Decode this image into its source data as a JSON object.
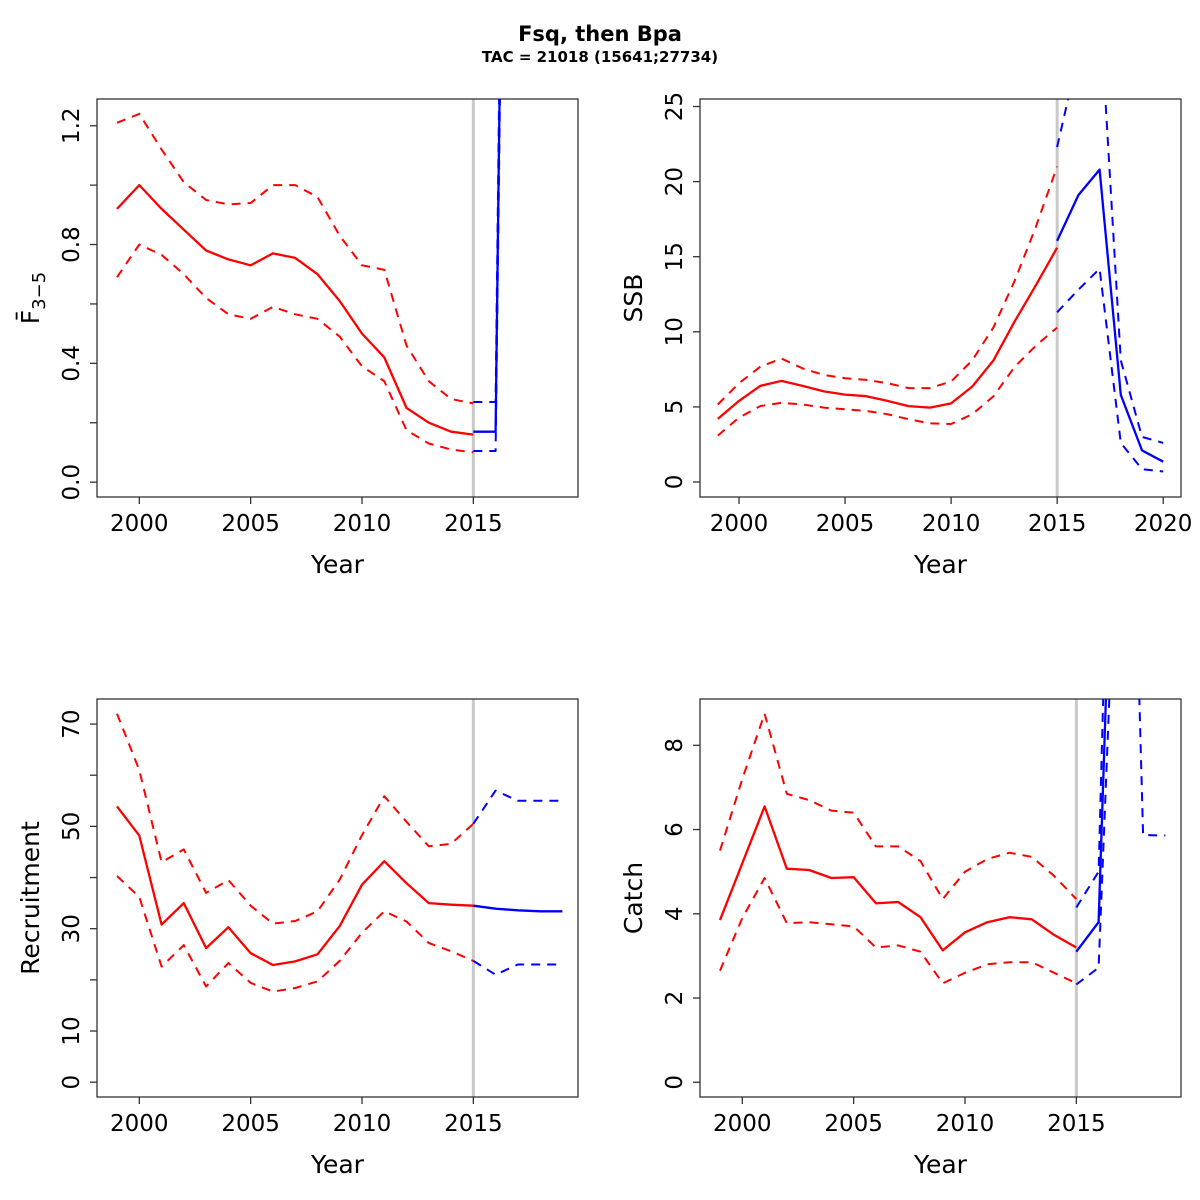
{
  "title": "Fsq, then Bpa",
  "subtitle": "TAC = 21018 (15641;27734)",
  "colors": {
    "historical": "#FF0000",
    "forecast": "#0000FF",
    "divider": "#C9C9C9",
    "axis": "#333333",
    "background": "#FFFFFF"
  },
  "divider_year": 2015,
  "chart_data": [
    {
      "name": "fbar",
      "type": "line",
      "ylabel": "F̄",
      "ylabel_sub": "3−5",
      "xlabel": "Year",
      "xlim": [
        1998.1,
        2019.7
      ],
      "ylim": [
        -0.05,
        1.29
      ],
      "legend": "none",
      "grid": false,
      "xticks": [
        {
          "v": 2000,
          "label": "2000"
        },
        {
          "v": 2005,
          "label": "2005"
        },
        {
          "v": 2010,
          "label": "2010"
        },
        {
          "v": 2015,
          "label": "2015"
        }
      ],
      "yticks": [
        {
          "v": 0,
          "label": "0.0"
        },
        {
          "v": 0.2,
          "label": ""
        },
        {
          "v": 0.4,
          "label": "0.4"
        },
        {
          "v": 0.6,
          "label": ""
        },
        {
          "v": 0.8,
          "label": "0.8"
        },
        {
          "v": 1.0,
          "label": ""
        },
        {
          "v": 1.2,
          "label": "1.2"
        }
      ],
      "series": [
        {
          "name": "historical-upper",
          "period": "historical",
          "dash": true,
          "x": [
            1999,
            2000,
            2001,
            2002,
            2003,
            2004,
            2005,
            2006,
            2007,
            2008,
            2009,
            2010,
            2011,
            2012,
            2013,
            2014,
            2015
          ],
          "y": [
            1.21,
            1.24,
            1.12,
            1.01,
            0.95,
            0.935,
            0.94,
            1.0,
            1.0,
            0.96,
            0.83,
            0.73,
            0.715,
            0.46,
            0.34,
            0.28,
            0.265
          ]
        },
        {
          "name": "historical-median",
          "period": "historical",
          "dash": false,
          "x": [
            1999,
            2000,
            2001,
            2002,
            2003,
            2004,
            2005,
            2006,
            2007,
            2008,
            2009,
            2010,
            2011,
            2012,
            2013,
            2014,
            2015
          ],
          "y": [
            0.92,
            1.0,
            0.92,
            0.85,
            0.78,
            0.75,
            0.73,
            0.77,
            0.755,
            0.7,
            0.61,
            0.5,
            0.42,
            0.25,
            0.2,
            0.17,
            0.16
          ]
        },
        {
          "name": "historical-lower",
          "period": "historical",
          "dash": true,
          "x": [
            1999,
            2000,
            2001,
            2002,
            2003,
            2004,
            2005,
            2006,
            2007,
            2008,
            2009,
            2010,
            2011,
            2012,
            2013,
            2014,
            2015
          ],
          "y": [
            0.69,
            0.8,
            0.765,
            0.7,
            0.62,
            0.565,
            0.55,
            0.59,
            0.565,
            0.55,
            0.49,
            0.39,
            0.34,
            0.175,
            0.13,
            0.11,
            0.1
          ]
        },
        {
          "name": "forecast-upper",
          "period": "forecast",
          "dash": true,
          "x": [
            2015,
            2016,
            2017
          ],
          "y": [
            0.27,
            0.27,
            6.8
          ]
        },
        {
          "name": "forecast-median",
          "period": "forecast",
          "dash": false,
          "x": [
            2015,
            2016,
            2017
          ],
          "y": [
            0.17,
            0.17,
            6.5
          ]
        },
        {
          "name": "forecast-lower",
          "period": "forecast",
          "dash": true,
          "x": [
            2015,
            2016,
            2017
          ],
          "y": [
            0.105,
            0.105,
            6.2
          ]
        }
      ]
    },
    {
      "name": "ssb",
      "type": "line",
      "ylabel": "SSB",
      "ylabel_sub": "",
      "xlabel": "Year",
      "xlim": [
        1998.16,
        2020.84
      ],
      "ylim": [
        -1.0,
        25.5
      ],
      "legend": "none",
      "grid": false,
      "xticks": [
        {
          "v": 2000,
          "label": "2000"
        },
        {
          "v": 2005,
          "label": "2005"
        },
        {
          "v": 2010,
          "label": "2010"
        },
        {
          "v": 2015,
          "label": "2015"
        },
        {
          "v": 2020,
          "label": "2020"
        }
      ],
      "yticks": [
        {
          "v": 0,
          "label": "0"
        },
        {
          "v": 5,
          "label": "5"
        },
        {
          "v": 10,
          "label": "10"
        },
        {
          "v": 15,
          "label": "15"
        },
        {
          "v": 20,
          "label": "20"
        },
        {
          "v": 25,
          "label": "25"
        }
      ],
      "series": [
        {
          "name": "historical-upper",
          "period": "historical",
          "dash": true,
          "x": [
            1999,
            2000,
            2001,
            2002,
            2003,
            2004,
            2005,
            2006,
            2007,
            2008,
            2009,
            2010,
            2011,
            2012,
            2013,
            2014,
            2015
          ],
          "y": [
            5.16,
            6.58,
            7.67,
            8.22,
            7.56,
            7.12,
            6.91,
            6.8,
            6.58,
            6.25,
            6.25,
            6.69,
            8.1,
            10.3,
            13.4,
            17.0,
            21.0
          ]
        },
        {
          "name": "historical-median",
          "period": "historical",
          "dash": false,
          "x": [
            1999,
            2000,
            2001,
            2002,
            2003,
            2004,
            2005,
            2006,
            2007,
            2008,
            2009,
            2010,
            2011,
            2012,
            2013,
            2014,
            2015
          ],
          "y": [
            4.2,
            5.4,
            6.4,
            6.73,
            6.4,
            6.03,
            5.82,
            5.71,
            5.4,
            5.05,
            4.95,
            5.23,
            6.36,
            8.1,
            10.7,
            13.1,
            15.6
          ]
        },
        {
          "name": "historical-lower",
          "period": "historical",
          "dash": true,
          "x": [
            1999,
            2000,
            2001,
            2002,
            2003,
            2004,
            2005,
            2006,
            2007,
            2008,
            2009,
            2010,
            2011,
            2012,
            2013,
            2014,
            2015
          ],
          "y": [
            3.09,
            4.29,
            5.05,
            5.27,
            5.16,
            4.95,
            4.84,
            4.73,
            4.51,
            4.18,
            3.9,
            3.86,
            4.51,
            5.71,
            7.67,
            9.08,
            10.28
          ]
        },
        {
          "name": "forecast-upper",
          "period": "forecast",
          "dash": true,
          "x": [
            2015,
            2016,
            2017,
            2018,
            2019,
            2020
          ],
          "y": [
            22.3,
            28.5,
            32.0,
            8.1,
            3.0,
            2.6
          ]
        },
        {
          "name": "forecast-median",
          "period": "forecast",
          "dash": false,
          "x": [
            2015,
            2016,
            2017,
            2018,
            2019,
            2020
          ],
          "y": [
            16.05,
            19.1,
            20.8,
            5.8,
            2.1,
            1.35
          ]
        },
        {
          "name": "forecast-lower",
          "period": "forecast",
          "dash": true,
          "x": [
            2015,
            2016,
            2017,
            2018,
            2019,
            2020
          ],
          "y": [
            11.3,
            12.8,
            14.2,
            2.6,
            0.85,
            0.7
          ]
        }
      ]
    },
    {
      "name": "recruitment",
      "type": "line",
      "ylabel": "Recruitment",
      "ylabel_sub": "",
      "xlabel": "Year",
      "xlim": [
        1998.1,
        2019.7
      ],
      "ylim": [
        -2.9,
        74.9
      ],
      "legend": "none",
      "grid": false,
      "xticks": [
        {
          "v": 2000,
          "label": "2000"
        },
        {
          "v": 2005,
          "label": "2005"
        },
        {
          "v": 2010,
          "label": "2010"
        },
        {
          "v": 2015,
          "label": "2015"
        }
      ],
      "yticks": [
        {
          "v": 0,
          "label": "0"
        },
        {
          "v": 10,
          "label": "10"
        },
        {
          "v": 20,
          "label": ""
        },
        {
          "v": 30,
          "label": "30"
        },
        {
          "v": 40,
          "label": ""
        },
        {
          "v": 50,
          "label": "50"
        },
        {
          "v": 60,
          "label": ""
        },
        {
          "v": 70,
          "label": "70"
        }
      ],
      "series": [
        {
          "name": "historical-upper",
          "period": "historical",
          "dash": true,
          "x": [
            1999,
            2000,
            2001,
            2002,
            2003,
            2004,
            2005,
            2006,
            2007,
            2008,
            2009,
            2010,
            2011,
            2012,
            2013,
            2014,
            2015
          ],
          "y": [
            72.0,
            61.0,
            43.0,
            45.5,
            37.0,
            39.5,
            34.5,
            31.0,
            31.5,
            33.4,
            39.6,
            48.3,
            55.9,
            50.9,
            46.1,
            46.6,
            50.5
          ]
        },
        {
          "name": "historical-median",
          "period": "historical",
          "dash": false,
          "x": [
            1999,
            2000,
            2001,
            2002,
            2003,
            2004,
            2005,
            2006,
            2007,
            2008,
            2009,
            2010,
            2011,
            2012,
            2013,
            2014,
            2015
          ],
          "y": [
            53.9,
            48.2,
            30.8,
            35.0,
            26.2,
            30.3,
            25.2,
            22.9,
            23.6,
            25.0,
            30.5,
            38.6,
            43.2,
            38.9,
            35.0,
            34.7,
            34.5
          ]
        },
        {
          "name": "historical-lower",
          "period": "historical",
          "dash": true,
          "x": [
            1999,
            2000,
            2001,
            2002,
            2003,
            2004,
            2005,
            2006,
            2007,
            2008,
            2009,
            2010,
            2011,
            2012,
            2013,
            2014,
            2015
          ],
          "y": [
            40.3,
            36.2,
            22.6,
            26.8,
            18.7,
            23.3,
            19.4,
            17.7,
            18.4,
            19.7,
            23.7,
            29.2,
            33.4,
            31.4,
            27.2,
            25.6,
            23.7
          ]
        },
        {
          "name": "forecast-upper",
          "period": "forecast",
          "dash": true,
          "x": [
            2015,
            2016,
            2017,
            2018,
            2019
          ],
          "y": [
            50.5,
            57.0,
            55.0,
            55.0,
            55.0
          ]
        },
        {
          "name": "forecast-median",
          "period": "forecast",
          "dash": false,
          "x": [
            2015,
            2016,
            2017,
            2018,
            2019
          ],
          "y": [
            34.5,
            33.9,
            33.6,
            33.4,
            33.4
          ]
        },
        {
          "name": "forecast-lower",
          "period": "forecast",
          "dash": true,
          "x": [
            2015,
            2016,
            2017,
            2018,
            2019
          ],
          "y": [
            23.7,
            21.0,
            23.0,
            23.0,
            23.0
          ]
        }
      ]
    },
    {
      "name": "catch",
      "type": "line",
      "ylabel": "Catch",
      "ylabel_sub": "",
      "xlabel": "Year",
      "xlim": [
        1998.1,
        2019.7
      ],
      "ylim": [
        -0.35,
        9.1
      ],
      "legend": "none",
      "grid": false,
      "xticks": [
        {
          "v": 2000,
          "label": "2000"
        },
        {
          "v": 2005,
          "label": "2005"
        },
        {
          "v": 2010,
          "label": "2010"
        },
        {
          "v": 2015,
          "label": "2015"
        }
      ],
      "yticks": [
        {
          "v": 0,
          "label": "0"
        },
        {
          "v": 2,
          "label": "2"
        },
        {
          "v": 4,
          "label": "4"
        },
        {
          "v": 6,
          "label": "6"
        },
        {
          "v": 8,
          "label": "8"
        }
      ],
      "series": [
        {
          "name": "historical-upper",
          "period": "historical",
          "dash": true,
          "x": [
            1999,
            2000,
            2001,
            2002,
            2003,
            2004,
            2005,
            2006,
            2007,
            2008,
            2009,
            2010,
            2011,
            2012,
            2013,
            2014,
            2015
          ],
          "y": [
            5.5,
            7.2,
            8.75,
            6.85,
            6.7,
            6.45,
            6.4,
            5.6,
            5.6,
            5.25,
            4.35,
            5.0,
            5.3,
            5.45,
            5.35,
            4.9,
            4.35
          ]
        },
        {
          "name": "historical-median",
          "period": "historical",
          "dash": false,
          "x": [
            1999,
            2000,
            2001,
            2002,
            2003,
            2004,
            2005,
            2006,
            2007,
            2008,
            2009,
            2010,
            2011,
            2012,
            2013,
            2014,
            2015
          ],
          "y": [
            3.85,
            5.2,
            6.55,
            5.07,
            5.04,
            4.85,
            4.87,
            4.25,
            4.28,
            3.92,
            3.13,
            3.56,
            3.8,
            3.92,
            3.87,
            3.5,
            3.2
          ]
        },
        {
          "name": "historical-lower",
          "period": "historical",
          "dash": true,
          "x": [
            1999,
            2000,
            2001,
            2002,
            2003,
            2004,
            2005,
            2006,
            2007,
            2008,
            2009,
            2010,
            2011,
            2012,
            2013,
            2014,
            2015
          ],
          "y": [
            2.65,
            3.9,
            4.85,
            3.78,
            3.8,
            3.75,
            3.7,
            3.2,
            3.25,
            3.1,
            2.35,
            2.6,
            2.8,
            2.85,
            2.85,
            2.6,
            2.35
          ]
        },
        {
          "name": "forecast-upper",
          "period": "forecast",
          "dash": true,
          "x": [
            2015,
            2016,
            2017,
            2018,
            2019
          ],
          "y": [
            4.15,
            5.0,
            25.0,
            5.87,
            5.86
          ]
        },
        {
          "name": "forecast-median",
          "period": "forecast",
          "dash": false,
          "x": [
            2015,
            2016,
            2017
          ],
          "y": [
            3.1,
            3.8,
            20.0
          ]
        },
        {
          "name": "forecast-lower",
          "period": "forecast",
          "dash": true,
          "x": [
            2015,
            2016,
            2017
          ],
          "y": [
            2.32,
            2.72,
            16.0
          ]
        }
      ]
    }
  ]
}
